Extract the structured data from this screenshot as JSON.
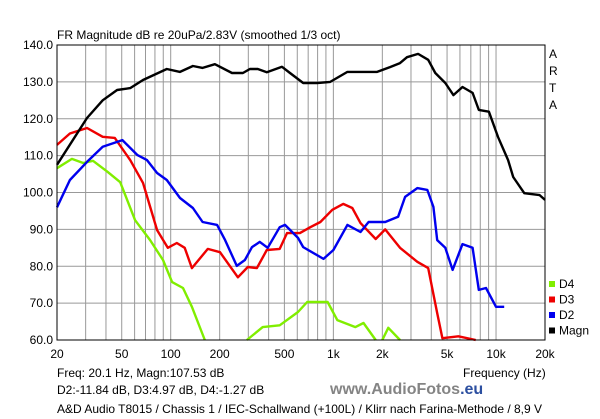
{
  "chart_data": {
    "type": "line",
    "title": "FR Magnitude dB re 20uPa/2.83V (smoothed 1/3 oct)",
    "xlabel": "Frequency (Hz)",
    "ylabel": "",
    "xscale": "log",
    "xlim": [
      20,
      20000
    ],
    "ylim": [
      60,
      140
    ],
    "grid": true,
    "legend_position": "bottom-right",
    "x_ticks": [
      {
        "value": 20,
        "label": "20"
      },
      {
        "value": 50,
        "label": "50"
      },
      {
        "value": 100,
        "label": "100"
      },
      {
        "value": 200,
        "label": "200"
      },
      {
        "value": 500,
        "label": "500"
      },
      {
        "value": 1000,
        "label": "1k"
      },
      {
        "value": 2000,
        "label": "2k"
      },
      {
        "value": 5000,
        "label": "5k"
      },
      {
        "value": 10000,
        "label": "10k"
      },
      {
        "value": 20000,
        "label": "20k"
      }
    ],
    "y_ticks": [
      {
        "value": 140,
        "label": "140.0"
      },
      {
        "value": 130,
        "label": "130.0"
      },
      {
        "value": 120,
        "label": "120.0"
      },
      {
        "value": 110,
        "label": "110.0"
      },
      {
        "value": 100,
        "label": "100.0"
      },
      {
        "value": 90,
        "label": "90.0"
      },
      {
        "value": 80,
        "label": "80.0"
      },
      {
        "value": 70,
        "label": "70.0"
      },
      {
        "value": 60,
        "label": "60.0"
      }
    ],
    "series": [
      {
        "name": "D4",
        "color": "#80ee00",
        "segments": [
          [
            [
              20,
              106.6
            ],
            [
              24.7,
              109.1
            ],
            [
              29,
              108
            ],
            [
              33.3,
              108.6
            ],
            [
              41,
              105.6
            ],
            [
              48.9,
              102.8
            ],
            [
              60.4,
              92.5
            ],
            [
              74.7,
              87.1
            ],
            [
              89.7,
              81.7
            ],
            [
              102,
              75.7
            ],
            [
              119,
              74.1
            ],
            [
              135,
              69
            ],
            [
              162,
              60
            ]
          ],
          [
            [
              294,
              60
            ],
            [
              368,
              63.5
            ],
            [
              468,
              64
            ],
            [
              606,
              67.6
            ],
            [
              690,
              70.3
            ],
            [
              921,
              70.3
            ],
            [
              1058,
              65.4
            ],
            [
              1366,
              63.5
            ],
            [
              1532,
              64.6
            ],
            [
              1820,
              60
            ]
          ],
          [
            [
              2000,
              60
            ],
            [
              2175,
              63.3
            ],
            [
              2567,
              60
            ]
          ]
        ]
      },
      {
        "name": "D3",
        "color": "#ee0000",
        "segments": [
          [
            [
              20,
              112.9
            ],
            [
              24,
              116
            ],
            [
              30.6,
              117.5
            ],
            [
              38.2,
              115.1
            ],
            [
              45.3,
              114.8
            ],
            [
              56.4,
              108.8
            ],
            [
              67.6,
              102.6
            ],
            [
              82.5,
              89.8
            ],
            [
              96,
              85
            ],
            [
              109,
              86.3
            ],
            [
              122,
              85
            ],
            [
              135,
              79.5
            ],
            [
              169,
              84.7
            ],
            [
              201,
              83.8
            ],
            [
              259,
              77
            ],
            [
              298,
              79.8
            ],
            [
              339,
              79.5
            ],
            [
              390,
              84.4
            ],
            [
              468,
              84.7
            ],
            [
              519,
              89
            ],
            [
              623,
              89
            ],
            [
              721,
              90.6
            ],
            [
              832,
              92
            ],
            [
              985,
              95.3
            ],
            [
              1150,
              96.9
            ],
            [
              1308,
              95.8
            ],
            [
              1468,
              91.7
            ],
            [
              1820,
              87.4
            ],
            [
              2084,
              90
            ],
            [
              2567,
              85
            ],
            [
              3282,
              81.2
            ],
            [
              3830,
              79.5
            ],
            [
              4350,
              67.3
            ],
            [
              4680,
              60.5
            ],
            [
              5870,
              61
            ],
            [
              7500,
              60
            ]
          ]
        ]
      },
      {
        "name": "D2",
        "color": "#0000ee",
        "segments": [
          [
            [
              20,
              96
            ],
            [
              24,
              103.4
            ],
            [
              30.6,
              108.3
            ],
            [
              38.2,
              112.4
            ],
            [
              50.5,
              114.2
            ],
            [
              62.2,
              110.2
            ],
            [
              71.5,
              108.8
            ],
            [
              82.5,
              105.3
            ],
            [
              94.6,
              103.4
            ],
            [
              114,
              98.5
            ],
            [
              137,
              95.8
            ],
            [
              157,
              92
            ],
            [
              193,
              91.2
            ],
            [
              216,
              87.1
            ],
            [
              255,
              80.1
            ],
            [
              286,
              81.7
            ],
            [
              316,
              85.2
            ],
            [
              353,
              86.6
            ],
            [
              395,
              85
            ],
            [
              468,
              90.6
            ],
            [
              504,
              91.2
            ],
            [
              606,
              87.7
            ],
            [
              652,
              85.2
            ],
            [
              870,
              82
            ],
            [
              1000,
              84.4
            ],
            [
              1219,
              91.2
            ],
            [
              1468,
              89.3
            ],
            [
              1647,
              92
            ],
            [
              2084,
              92
            ],
            [
              2500,
              93.4
            ],
            [
              2760,
              98.8
            ],
            [
              3282,
              101.2
            ],
            [
              3780,
              100.7
            ],
            [
              4120,
              96.1
            ],
            [
              4350,
              87.1
            ],
            [
              4880,
              85
            ],
            [
              5410,
              79
            ],
            [
              6220,
              86
            ],
            [
              7180,
              85
            ],
            [
              7830,
              73.6
            ],
            [
              8670,
              74.1
            ],
            [
              10000,
              69
            ],
            [
              11230,
              69
            ]
          ]
        ]
      },
      {
        "name": "Magn",
        "color": "#000000",
        "segments": [
          [
            [
              20,
              107.5
            ],
            [
              30.6,
              120.2
            ],
            [
              38.2,
              125
            ],
            [
              46.8,
              127.8
            ],
            [
              56.4,
              128.3
            ],
            [
              67.6,
              130.5
            ],
            [
              94.6,
              133.5
            ],
            [
              114,
              132.7
            ],
            [
              137,
              134.3
            ],
            [
              157,
              133.8
            ],
            [
              187,
              134.8
            ],
            [
              238,
              132.4
            ],
            [
              278,
              132.4
            ],
            [
              307,
              133.5
            ],
            [
              343,
              133.5
            ],
            [
              390,
              132.6
            ],
            [
              483,
              134.1
            ],
            [
              541,
              132.4
            ],
            [
              652,
              129.7
            ],
            [
              796,
              129.7
            ],
            [
              956,
              130
            ],
            [
              1219,
              132.7
            ],
            [
              1857,
              132.7
            ],
            [
              2228,
              134
            ],
            [
              2567,
              135.1
            ],
            [
              2837,
              136.7
            ],
            [
              3320,
              137.6
            ],
            [
              3830,
              136
            ],
            [
              4230,
              132.4
            ],
            [
              4880,
              129.7
            ],
            [
              5470,
              126.4
            ],
            [
              6220,
              128.6
            ],
            [
              7180,
              127
            ],
            [
              7830,
              122.4
            ],
            [
              9040,
              121.9
            ],
            [
              10290,
              115
            ],
            [
              11870,
              108.8
            ],
            [
              12750,
              104.2
            ],
            [
              14930,
              99.8
            ],
            [
              18540,
              99.3
            ],
            [
              20000,
              98
            ]
          ]
        ]
      }
    ],
    "legend": [
      "D4",
      "D3",
      "D2",
      "Magn"
    ],
    "side_label": [
      "A",
      "R",
      "T",
      "A"
    ]
  },
  "readout": {
    "line1": "Freq: 20.1 Hz, Magn:107.53 dB",
    "line2": "D2:-11.84 dB, D3:4.97 dB, D4:-1.27 dB"
  },
  "caption": "A&D Audio T8015 / Chassis 1 / IEC-Schallwand (+100L) / Klirr nach Farina-Methode / 8,9 V",
  "watermark": {
    "main": "www.AudioFotos",
    "suffix": ".eu"
  }
}
